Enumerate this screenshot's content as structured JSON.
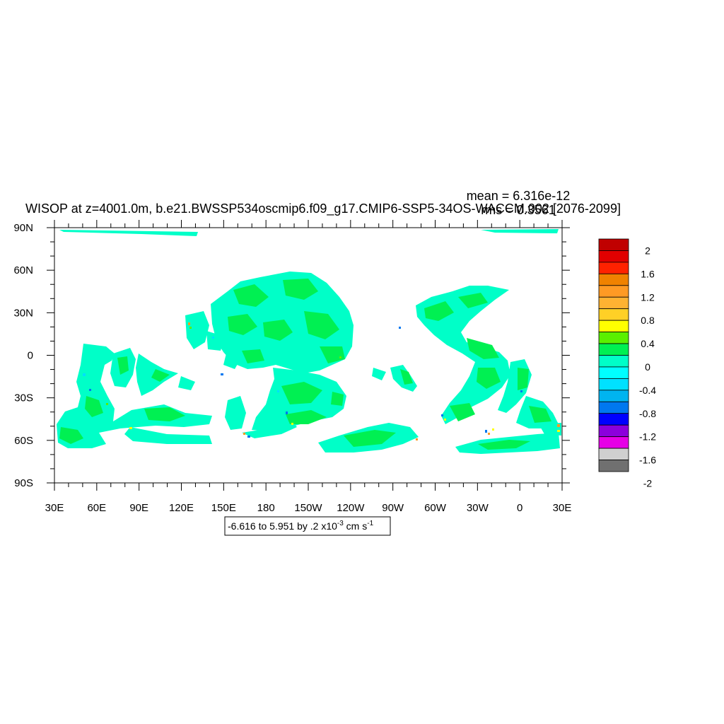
{
  "chart_data": {
    "type": "heatmap",
    "title": "WISOP at z=4001.0m, b.e21.BWSSP534oscmip6.f09_g17.CMIP6-SSP5-34OS-WACCM.002 [2076-2099]",
    "stats": {
      "mean": "mean = 6.316e-12",
      "rms": "rms = 0.3561"
    },
    "x_ticks": [
      "30E",
      "60E",
      "90E",
      "120E",
      "150E",
      "180",
      "150W",
      "120W",
      "90W",
      "60W",
      "30W",
      "0",
      "30E"
    ],
    "y_ticks": [
      "90N",
      "60N",
      "30N",
      "0",
      "30S",
      "60S",
      "90S"
    ],
    "xlim_deg_east": [
      30,
      390
    ],
    "ylim_deg_north": [
      -90,
      90
    ],
    "grid": false,
    "legend_position": "right",
    "info_label": {
      "main": "-6.616 to 5.951 by .2 x10",
      "exp1": "-3",
      "unit": " cm s",
      "exp2": "-1"
    },
    "colorbar": {
      "labels": [
        "2",
        "1.6",
        "1.2",
        "0.8",
        "0.4",
        "0",
        "-0.4",
        "-0.8",
        "-1.2",
        "-1.6",
        "-2"
      ],
      "colors_top_to_bottom": [
        "#c00000",
        "#e10000",
        "#ff2200",
        "#f08200",
        "#ff9a24",
        "#ffb232",
        "#ffd026",
        "#ffff00",
        "#5af000",
        "#00f052",
        "#00ffc8",
        "#00ffff",
        "#00e1ff",
        "#00b4f0",
        "#0078f0",
        "#0000ff",
        "#8c00dc",
        "#e600e6",
        "#d0d0d0",
        "#707070"
      ]
    },
    "field_colors": {
      "dominant": "#00ffc8",
      "secondary": "#00f052",
      "sparse": [
        "#00e1ff",
        "#5af000",
        "#ffff00",
        "#ff9a24",
        "#0078f0"
      ]
    }
  }
}
